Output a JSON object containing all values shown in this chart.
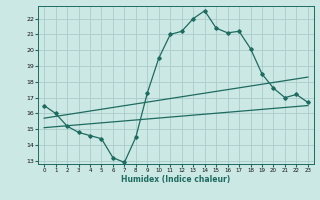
{
  "xlabel": "Humidex (Indice chaleur)",
  "background_color": "#cce8e4",
  "grid_color": "#aaccca",
  "line_color": "#1e6b60",
  "xlim": [
    -0.5,
    23.5
  ],
  "ylim": [
    12.8,
    22.8
  ],
  "yticks": [
    13,
    14,
    15,
    16,
    17,
    18,
    19,
    20,
    21,
    22
  ],
  "xticks": [
    0,
    1,
    2,
    3,
    4,
    5,
    6,
    7,
    8,
    9,
    10,
    11,
    12,
    13,
    14,
    15,
    16,
    17,
    18,
    19,
    20,
    21,
    22,
    23
  ],
  "curve1_x": [
    0,
    1,
    2,
    3,
    4,
    5,
    6,
    7,
    8,
    9,
    10,
    11,
    12,
    13,
    14,
    15,
    16,
    17,
    18,
    19,
    20,
    21,
    22,
    23
  ],
  "curve1_y": [
    16.5,
    16.0,
    15.2,
    14.8,
    14.6,
    14.4,
    13.2,
    12.9,
    14.5,
    17.3,
    19.5,
    21.0,
    21.2,
    22.0,
    22.5,
    21.4,
    21.1,
    21.2,
    20.1,
    18.5,
    17.6,
    17.0,
    17.2,
    16.7
  ],
  "curve2_x": [
    0,
    23
  ],
  "curve2_y": [
    15.7,
    18.3
  ],
  "curve3_x": [
    0,
    23
  ],
  "curve3_y": [
    15.1,
    16.5
  ]
}
